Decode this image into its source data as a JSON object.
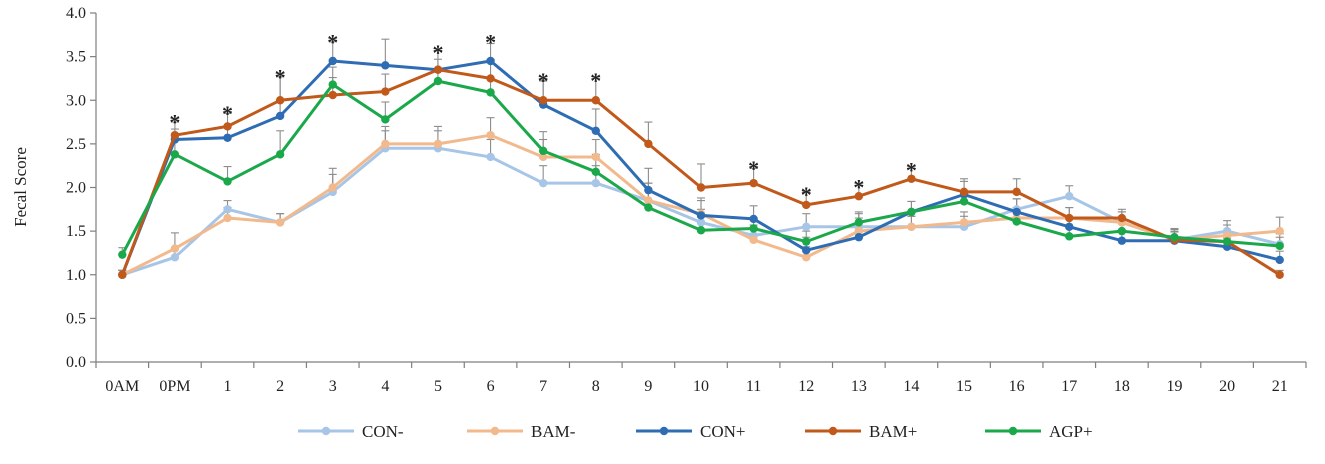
{
  "chart_data": {
    "type": "line",
    "title": "",
    "xlabel": "",
    "ylabel": "Fecal Score",
    "ylim": [
      0,
      4
    ],
    "yticks": [
      "0.0",
      "0.5",
      "1.0",
      "1.5",
      "2.0",
      "2.5",
      "3.0",
      "3.5",
      "4.0"
    ],
    "categories": [
      "0AM",
      "0PM",
      "1",
      "2",
      "3",
      "4",
      "5",
      "6",
      "7",
      "8",
      "9",
      "10",
      "11",
      "12",
      "13",
      "14",
      "15",
      "16",
      "17",
      "18",
      "19",
      "20",
      "21"
    ],
    "series": [
      {
        "name": "CON-",
        "color": "#a7c5e6",
        "values": [
          1.0,
          1.2,
          1.75,
          1.6,
          1.95,
          2.45,
          2.45,
          2.35,
          2.05,
          2.05,
          1.85,
          1.6,
          1.45,
          1.55,
          1.55,
          1.55,
          1.55,
          1.75,
          1.9,
          1.6,
          1.4,
          1.5,
          1.35
        ],
        "errors": [
          0.05,
          0.1,
          0.1,
          0.1,
          0.2,
          0.2,
          0.2,
          0.2,
          0.2,
          0.2,
          0.2,
          0.15,
          0.12,
          0.15,
          0.15,
          0.12,
          0.12,
          0.12,
          0.12,
          0.12,
          0.12,
          0.12,
          0.12
        ]
      },
      {
        "name": "BAM-",
        "color": "#f2b98d",
        "values": [
          1.0,
          1.3,
          1.65,
          1.6,
          2.0,
          2.5,
          2.5,
          2.6,
          2.35,
          2.35,
          1.85,
          1.7,
          1.4,
          1.2,
          1.5,
          1.55,
          1.6,
          1.65,
          1.65,
          1.6,
          1.4,
          1.45,
          1.5
        ],
        "errors": [
          0.05,
          0.18,
          0.12,
          0.1,
          0.22,
          0.2,
          0.2,
          0.2,
          0.2,
          0.2,
          0.2,
          0.15,
          0.12,
          0.12,
          0.15,
          0.12,
          0.12,
          0.12,
          0.12,
          0.12,
          0.12,
          0.12,
          0.16
        ]
      },
      {
        "name": "CON+",
        "color": "#2e6db3",
        "values": [
          1.0,
          2.55,
          2.57,
          2.82,
          3.45,
          3.4,
          3.35,
          3.45,
          2.95,
          2.65,
          1.97,
          1.68,
          1.64,
          1.28,
          1.43,
          1.72,
          1.92,
          1.72,
          1.55,
          1.39,
          1.39,
          1.32,
          1.17
        ],
        "errors": [
          0.05,
          0.12,
          0.12,
          0.45,
          0.22,
          0.3,
          0.12,
          0.2,
          0.28,
          0.25,
          0.25,
          0.2,
          0.15,
          0.15,
          0.12,
          0.12,
          0.15,
          0.15,
          0.1,
          0.1,
          0.1,
          0.1,
          0.1
        ]
      },
      {
        "name": "BAM+",
        "color": "#c0591a",
        "values": [
          1.0,
          2.6,
          2.7,
          3.0,
          3.06,
          3.1,
          3.35,
          3.25,
          3.0,
          3.0,
          2.5,
          2.0,
          2.05,
          1.8,
          1.9,
          2.1,
          1.95,
          1.95,
          1.65,
          1.65,
          1.4,
          1.38,
          1.0
        ],
        "errors": [
          0.05,
          0.15,
          0.15,
          0.27,
          0.2,
          0.2,
          0.22,
          0.22,
          0.22,
          0.27,
          0.25,
          0.27,
          0.17,
          0.15,
          0.12,
          0.12,
          0.15,
          0.15,
          0.12,
          0.1,
          0.1,
          0.1,
          0.05
        ]
      },
      {
        "name": "AGP+",
        "color": "#1aa84a",
        "values": [
          1.23,
          2.38,
          2.07,
          2.38,
          3.18,
          2.78,
          3.22,
          3.09,
          2.42,
          2.18,
          1.77,
          1.51,
          1.53,
          1.38,
          1.6,
          1.72,
          1.84,
          1.61,
          1.44,
          1.5,
          1.43,
          1.38,
          1.33
        ],
        "errors": [
          0.08,
          0.2,
          0.17,
          0.27,
          0.2,
          0.2,
          0.12,
          0.17,
          0.22,
          0.2,
          0.2,
          0.15,
          0.12,
          0.12,
          0.12,
          0.12,
          0.12,
          0.12,
          0.1,
          0.1,
          0.1,
          0.1,
          0.1
        ]
      }
    ],
    "annotations": [
      {
        "text": "*",
        "category": "0PM",
        "y": 2.8
      },
      {
        "text": "*",
        "category": "1",
        "y": 2.9
      },
      {
        "text": "*",
        "category": "2",
        "y": 3.32
      },
      {
        "text": "*",
        "category": "3",
        "y": 3.72
      },
      {
        "text": "*",
        "category": "5",
        "y": 3.6
      },
      {
        "text": "*",
        "category": "6",
        "y": 3.72
      },
      {
        "text": "*",
        "category": "7",
        "y": 3.28
      },
      {
        "text": "*",
        "category": "8",
        "y": 3.28
      },
      {
        "text": "*",
        "category": "11",
        "y": 2.27
      },
      {
        "text": "*",
        "category": "12",
        "y": 1.97
      },
      {
        "text": "*",
        "category": "13",
        "y": 2.06
      },
      {
        "text": "*",
        "category": "14",
        "y": 2.25
      }
    ],
    "legend": "bottom",
    "grid": false
  }
}
